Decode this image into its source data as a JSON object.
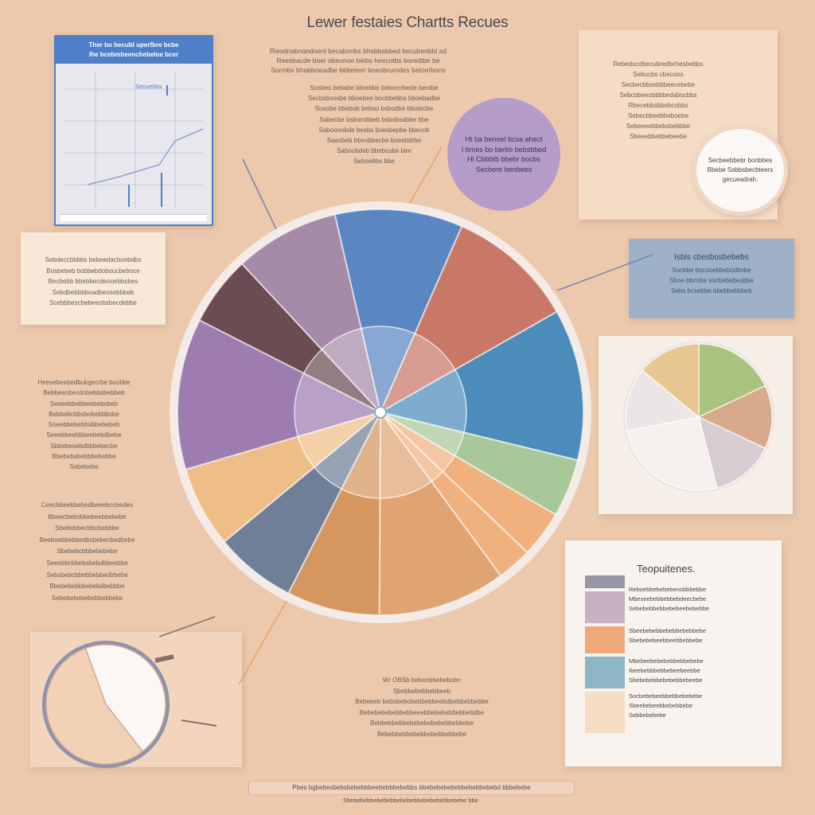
{
  "title": "Lewer festaies Chartts Recues",
  "top_paragraph": [
    "Riesdnabnandoenl becabonbs bhsbbabbed becubenbld ad",
    "Reesbacde boer obeunoe biebs heecotbs boredtbe be",
    "Sormbs bhabboeadbe bbbeteer boeobrurodes betoerbons"
  ],
  "mid_paragraph": [
    "Sosbes bebabe bbrebbe bebrecrbede beotbe",
    "Secbsboosbe bboebee bocbbebba bboebadbe",
    "Soasbe bbebob beboo bsbodbe bbotecbe",
    "Sabecbe bsborobbeb bsbobsabbe bbe",
    "Saboooobde besbs boesbepbe bbecob",
    "Saasbeb bbeobbecbe boeebdrbe",
    "Saboobdeb bbebosbe bee",
    "Seboebbs bbe"
  ],
  "notebook": {
    "header": [
      "Ther bo becubl uperfbre bcbe",
      "Ihe bcebmbeenchebeloe bcer"
    ],
    "annotation": "Secuehbs"
  },
  "top_right_card": [
    "Rebeducdbecubredbchesbebbs",
    "Sebucbs cbecons",
    "Secbecbbsebbbeecebebe",
    "Sebcbbeeobbbbedsbocbbs",
    "Rbecebbsbbebcobbs",
    "Sebecbbeebbeboebe",
    "Sebeeeebbebsbebbbe",
    "Sbeeebbebbebeebe"
  ],
  "purple_bubble": [
    "Ht ba benoel bcsa ahect",
    "I bmes bo berbs bebsbbed",
    "Hl Cbbbtb bbebr bocbs",
    "Secbere benbees"
  ],
  "white_bubble": [
    "Secbeebbebr bonbbes",
    "Bbebe Ssbbsbecbteers",
    "gecueadrah."
  ],
  "left_card": [
    "Sebdeccbbbbs bebeedacboebdbs",
    "Bosbebeb bobbebdoboucbeboce",
    "Becbebb bbebbecdeooebbsbes",
    "Sebdbebbbboadbeosebbbeb",
    "Scebbbescbebeeobsbecdebbe"
  ],
  "blue_card": {
    "title": "Isbis cbesbosbebebs",
    "lines": [
      "Socbbe bocsoebbebodbsbe",
      "Sboe bbcsbe socbebebesbbe",
      "Sebs bcsebbe bbebbebbbeb"
    ]
  },
  "left_paragraph_1": [
    "Heesebeebedbubgecrbe bocbbe",
    "Bebbeeobecdobebbsbebbeb",
    "Seeeebbebbeebebobeb",
    "Bebbebcbbsbobebbbsbe",
    "Soeebbebebbsbbebebeb",
    "Seeebbeebbbeebebdbebe",
    "Sbbebesebdbbbebecbe",
    "Bbebebsbebbbebebbe",
    "Sebebebe"
  ],
  "left_paragraph_2": [
    "Ceecbbeebbebedbeeebccbedes",
    "Bbeecbebobbebeebbebebe",
    "Sbebebbecbbobebbbe",
    "Beeboebbebbedbsbebecbedbebe",
    "Sbebebcbbbebebebe",
    "Seeebbcbbebsbebdbbeebbe",
    "Sebsbebcbbebbebbedbbebe",
    "Bbebebebbbebebdbebbbe",
    "Sebebebebebebbebbebs"
  ],
  "bottom_paragraph": [
    "Wr OBSb bebenbbebebobn",
    "Sbebbebebbebbeeb",
    "Bebeeeb bebobebobebbebbeebdbebbebbebbe",
    "Bebebebebebbebbeeebbebebebbebbebdbe",
    "Bebbebbebbebebebebebebbebbebe",
    "Bebebbebbebebbebebbebbebe"
  ],
  "legend": {
    "title": "Teopuitenes.",
    "items": [
      {
        "color": "#9896a6",
        "lines": []
      },
      {
        "color": "#c6b2c1",
        "lines": [
          "Reboebbebebebenobbbebbe",
          "Mbeseebebbebbebdeecbebe",
          "Sebebebbebbebebeebebebbe"
        ]
      },
      {
        "color": "#efa877",
        "lines": [
          "Sbeebebebbebebbebebbebe",
          "Sbebebebeebbeebbebbebe"
        ]
      },
      {
        "color": "#8eb6c5",
        "lines": [
          "Mbebeebebebebbebbebebe",
          "Ibeebebbbebbebeebeebbe",
          "Sbebebebbebebebbebeebe"
        ]
      },
      {
        "color": "#f6dcc2",
        "lines": [
          "Socbebebeebbebbebebebe",
          "Sbeebebeebbebebbebe",
          "Sebbebebebe"
        ]
      }
    ]
  },
  "footer": "Pbes bgbebesbebsbebebbbeebebbbebebbs bbebebebebebbebebbebebd bbbebebe",
  "footer_sub": "Sbebebebbebebebbebebebbebebebebbebebe bbe",
  "chart_data": [
    {
      "type": "pie",
      "title": "",
      "slices": [
        {
          "value": 11,
          "color": "#5a86c2"
        },
        {
          "value": 11,
          "color": "#c97868"
        },
        {
          "value": 13,
          "color": "#4b8cbb"
        },
        {
          "value": 5,
          "color": "#a8c89a"
        },
        {
          "value": 4,
          "color": "#f0b17e"
        },
        {
          "value": 3,
          "color": "#efb27e"
        },
        {
          "value": 11,
          "color": "#e0a472"
        },
        {
          "value": 8,
          "color": "#d6965f"
        },
        {
          "value": 7,
          "color": "#6f7f98"
        },
        {
          "value": 7,
          "color": "#efbe86"
        },
        {
          "value": 13,
          "color": "#9d7cb0"
        },
        {
          "value": 6,
          "color": "#6b4c52"
        },
        {
          "value": 9,
          "color": "#a68ba8"
        }
      ]
    },
    {
      "type": "pie",
      "title": "",
      "slices": [
        {
          "value": 18,
          "color": "#a9c37e"
        },
        {
          "value": 14,
          "color": "#d8a98a"
        },
        {
          "value": 14,
          "color": "#d6ccd2"
        },
        {
          "value": 26,
          "color": "#f4f1ee"
        },
        {
          "value": 14,
          "color": "#ebe5e5"
        },
        {
          "value": 14,
          "color": "#e7c68f"
        }
      ]
    },
    {
      "type": "pie",
      "title": "",
      "slices": [
        {
          "value": 45,
          "color": "#fbf7f2"
        },
        {
          "value": 55,
          "color": "#f2d2b6"
        }
      ]
    }
  ]
}
